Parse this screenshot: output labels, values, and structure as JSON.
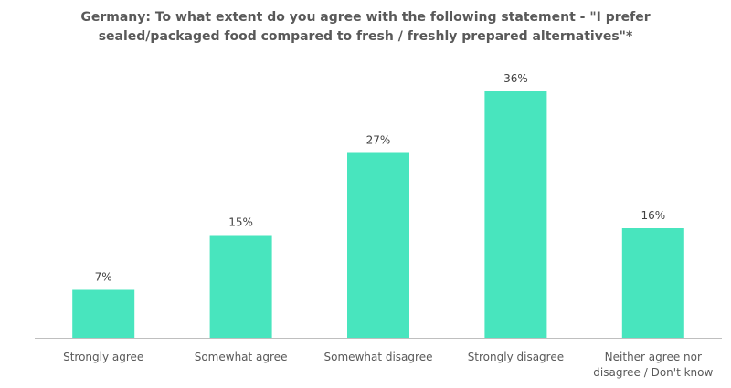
{
  "chart_data": {
    "type": "bar",
    "title_lines": [
      "Germany: To what extent do you agree with the following statement - \"I prefer",
      "sealed/packaged food compared to fresh / freshly prepared alternatives\"*"
    ],
    "categories": [
      [
        "Strongly agree"
      ],
      [
        "Somewhat agree"
      ],
      [
        "Somewhat disagree"
      ],
      [
        "Strongly disagree"
      ],
      [
        "Neither agree nor",
        "disagree / Don't know"
      ]
    ],
    "values": [
      7,
      15,
      27,
      36,
      16
    ],
    "data_labels": [
      "7%",
      "15%",
      "27%",
      "36%",
      "16%"
    ],
    "xlabel": "",
    "ylabel": "",
    "ylim": [
      0,
      36
    ],
    "grid": false,
    "legend": "none",
    "bar_color": "#48E5BE",
    "axis_color": "#BFBFBF"
  }
}
